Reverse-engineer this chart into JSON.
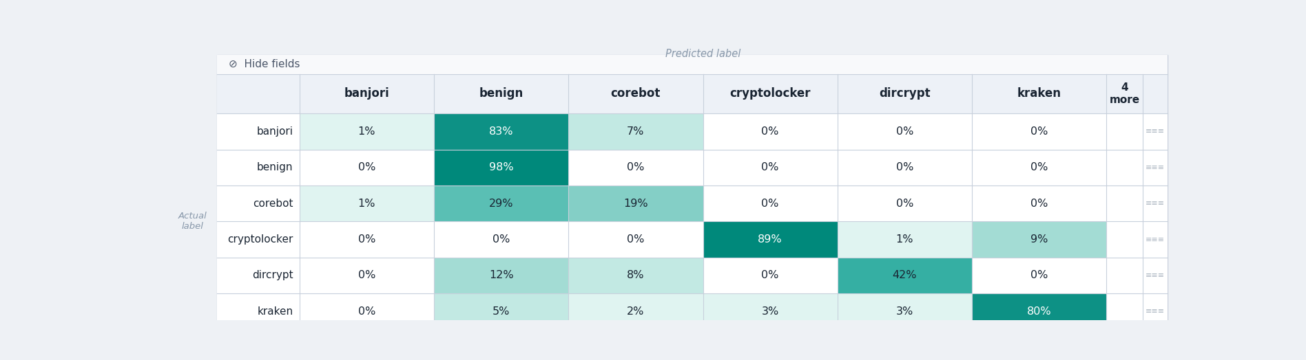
{
  "title": "Predicted label",
  "actual_label": "Actual\nlabel",
  "col_labels": [
    "banjori",
    "benign",
    "corebot",
    "cryptolocker",
    "dircrypt",
    "kraken"
  ],
  "row_labels": [
    "banjori",
    "benign",
    "corebot",
    "cryptolocker",
    "dircrypt",
    "kraken"
  ],
  "matrix_values": [
    [
      1,
      83,
      7,
      0,
      0,
      0
    ],
    [
      0,
      98,
      0,
      0,
      0,
      0
    ],
    [
      1,
      29,
      19,
      0,
      0,
      0
    ],
    [
      0,
      0,
      0,
      89,
      1,
      9
    ],
    [
      0,
      12,
      8,
      0,
      42,
      0
    ],
    [
      0,
      5,
      2,
      3,
      3,
      80
    ]
  ],
  "more_label": "4\nmore",
  "bg_color": "#eef1f5",
  "table_bg": "#ffffff",
  "header_bg": "#edf1f7",
  "border_color": "#c8d0dc",
  "text_dark": "#1a2533",
  "text_muted": "#8898aa"
}
